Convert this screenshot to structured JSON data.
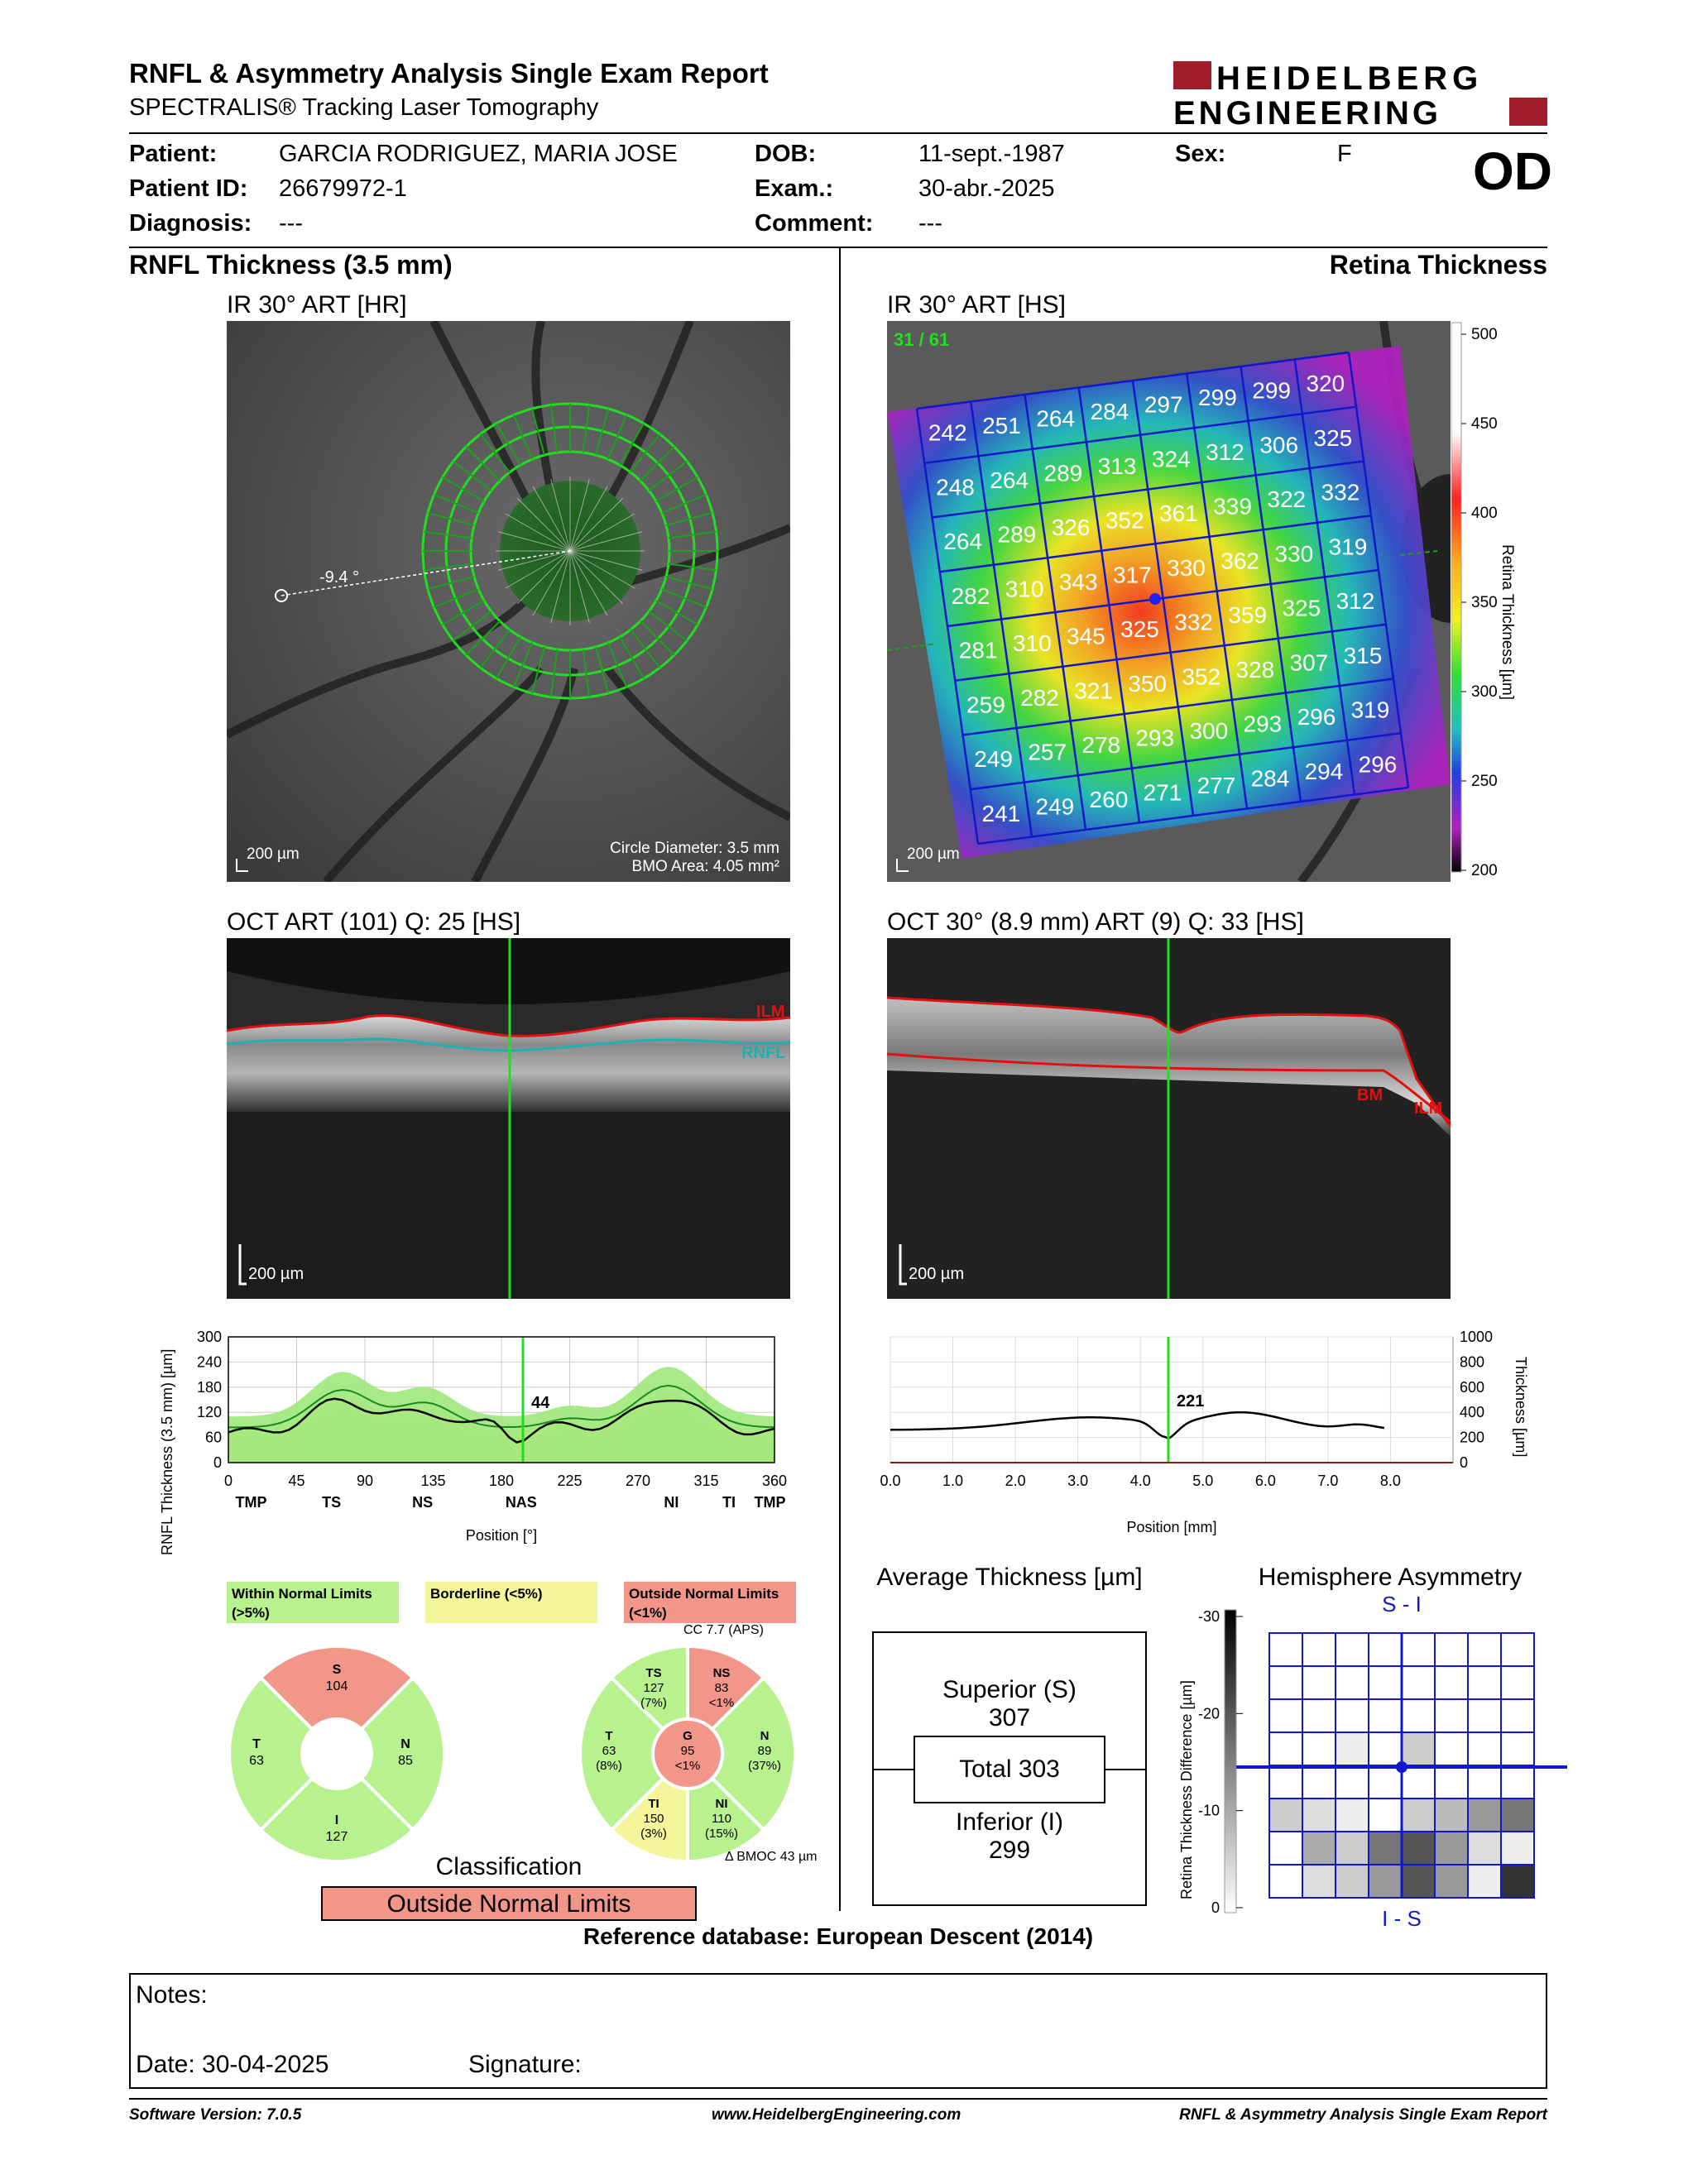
{
  "header": {
    "title": "RNFL & Asymmetry Analysis Single Exam Report",
    "subtitle": "SPECTRALIS® Tracking Laser Tomography",
    "logo_line1": "HEIDELBERG",
    "logo_line2": "ENGINEERING"
  },
  "patient": {
    "patient_label": "Patient:",
    "patient_name": "GARCIA RODRIGUEZ, MARIA JOSE",
    "patient_id_label": "Patient ID:",
    "patient_id": "26679972-1",
    "diagnosis_label": "Diagnosis:",
    "diagnosis": "---",
    "dob_label": "DOB:",
    "dob": "11-sept.-1987",
    "exam_label": "Exam.:",
    "exam": "30-abr.-2025",
    "comment_label": "Comment:",
    "comment": "---",
    "sex_label": "Sex:",
    "sex": "F",
    "eye": "OD"
  },
  "left": {
    "section_title": "RNFL Thickness (3.5 mm)",
    "ir_label": "IR 30° ART [HR]",
    "ir_scalebar": "200 µm",
    "ir_angle": "-9.4 °",
    "circle_diameter": "Circle Diameter: 3.5 mm",
    "bmo_area": "BMO Area: 4.05 mm²",
    "oct_label": "OCT ART (101) Q: 25 [HS]",
    "oct_scalebar": "200 µm",
    "oct_ilm": "ILM",
    "oct_rnfl": "RNFL",
    "profile_ylabel": "RNFL Thickness (3.5 mm) [µm]",
    "profile_xlabel": "Position [°]",
    "profile_cursor_value": "44",
    "profile_yticks": [
      "300",
      "240",
      "180",
      "120",
      "60",
      "0"
    ],
    "profile_xticks": [
      "0",
      "45",
      "90",
      "135",
      "180",
      "225",
      "270",
      "315",
      "360"
    ],
    "profile_sectors": [
      "TMP",
      "TS",
      "NS",
      "NAS",
      "NI",
      "TI",
      "TMP"
    ]
  },
  "right": {
    "section_title": "Retina Thickness",
    "ir_label": "IR 30° ART [HS]",
    "ir_counter": "31 / 61",
    "ir_scalebar": "200 µm",
    "colorbar_label": "Retina Thickness [µm]",
    "colorbar_ticks": [
      "500",
      "450",
      "400",
      "350",
      "300",
      "250",
      "200"
    ],
    "grid_values": [
      [
        "242",
        "251",
        "264",
        "284",
        "297",
        "299",
        "299",
        "320"
      ],
      [
        "248",
        "264",
        "289",
        "313",
        "324",
        "312",
        "306",
        "325"
      ],
      [
        "264",
        "289",
        "326",
        "352",
        "361",
        "339",
        "322",
        "332"
      ],
      [
        "282",
        "310",
        "343",
        "317",
        "330",
        "362",
        "330",
        "319"
      ],
      [
        "281",
        "310",
        "345",
        "325",
        "332",
        "359",
        "325",
        "312"
      ],
      [
        "259",
        "282",
        "321",
        "350",
        "352",
        "328",
        "307",
        "315"
      ],
      [
        "249",
        "257",
        "278",
        "293",
        "300",
        "293",
        "296",
        "319"
      ],
      [
        "241",
        "249",
        "260",
        "271",
        "277",
        "284",
        "294",
        "296"
      ]
    ],
    "oct_label": "OCT 30° (8.9 mm) ART (9) Q: 33 [HS]",
    "oct_scalebar": "200 µm",
    "oct_bm": "BM",
    "oct_ilm": "ILM",
    "profile_ylabel": "Thickness [µm]",
    "profile_xlabel": "Position [mm]",
    "profile_cursor_value": "221",
    "profile_yticks": [
      "1000",
      "800",
      "600",
      "400",
      "200",
      "0"
    ],
    "profile_xticks": [
      "0.0",
      "1.0",
      "2.0",
      "3.0",
      "4.0",
      "5.0",
      "6.0",
      "7.0",
      "8.0"
    ]
  },
  "legend": {
    "within": "Within Normal Limits (>5%)",
    "borderline": "Borderline (<5%)",
    "outside": "Outside Normal Limits (<1%)"
  },
  "sectors_simple": {
    "S": {
      "label": "S",
      "value": "104",
      "color": "#f2968a"
    },
    "T": {
      "label": "T",
      "value": "63",
      "color": "#b8f28e"
    },
    "N": {
      "label": "N",
      "value": "85",
      "color": "#b8f28e"
    },
    "I": {
      "label": "I",
      "value": "127",
      "color": "#b8f28e"
    }
  },
  "sectors_detailed": {
    "cc": "CC 7.7 (APS)",
    "bmoc": "Δ BMOC 43 µm",
    "TS": {
      "label": "TS",
      "value": "127",
      "pct": "(7%)",
      "color": "#b8f28e"
    },
    "NS": {
      "label": "NS",
      "value": "83",
      "pct": "<1%",
      "color": "#f2968a"
    },
    "T": {
      "label": "T",
      "value": "63",
      "pct": "(8%)",
      "color": "#b8f28e"
    },
    "G": {
      "label": "G",
      "value": "95",
      "pct": "<1%",
      "color": "#f2968a"
    },
    "N": {
      "label": "N",
      "value": "89",
      "pct": "(37%)",
      "color": "#b8f28e"
    },
    "TI": {
      "label": "TI",
      "value": "150",
      "pct": "(3%)",
      "color": "#f5f59a"
    },
    "NI": {
      "label": "NI",
      "value": "110",
      "pct": "(15%)",
      "color": "#b8f28e"
    }
  },
  "classification": {
    "title": "Classification",
    "value": "Outside Normal Limits"
  },
  "average_thickness": {
    "title": "Average Thickness [µm]",
    "superior_label": "Superior (S)",
    "superior_value": "307",
    "total_label": "Total 303",
    "inferior_label": "Inferior (I)",
    "inferior_value": "299"
  },
  "hemisphere": {
    "title": "Hemisphere Asymmetry",
    "top_label": "S - I",
    "bottom_label": "I - S",
    "ylabel": "Retina Thickness Difference [µm]",
    "yticks": [
      "-30",
      "-20",
      "-10",
      "0"
    ]
  },
  "reference": "Reference database: European Descent (2014)",
  "notes": {
    "notes_label": "Notes:",
    "date_label": "Date: 30-04-2025",
    "signature_label": "Signature:"
  },
  "footer": {
    "software": "Software Version: 7.0.5",
    "website": "www.HeidelbergEngineering.com",
    "report": "RNFL & Asymmetry Analysis Single Exam Report"
  }
}
